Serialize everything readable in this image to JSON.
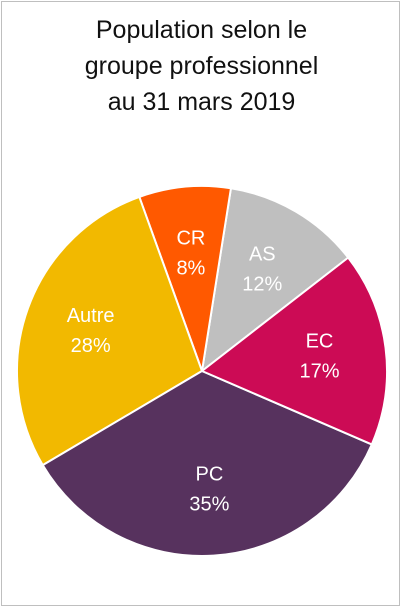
{
  "chart_data": {
    "type": "pie",
    "title": [
      "Population selon le",
      "groupe professionnel",
      "au 31 mars 2019"
    ],
    "slices": [
      {
        "label": "AS",
        "value": 12,
        "value_label": "12%",
        "color": "#BFBFBF",
        "text_color": "#FFFFFF"
      },
      {
        "label": "CR",
        "value": 8,
        "value_label": "8%",
        "color": "#FF5900",
        "text_color": "#FFFFFF"
      },
      {
        "label": "Autre",
        "value": 28,
        "value_label": "28%",
        "color": "#F2B900",
        "text_color": "#FFFFFF"
      },
      {
        "label": "PC",
        "value": 35,
        "value_label": "35%",
        "color": "#57325E",
        "text_color": "#FFFFFF"
      },
      {
        "label": "EC",
        "value": 17,
        "value_label": "17%",
        "color": "#CC0B55",
        "text_color": "#FFFFFF"
      }
    ]
  }
}
